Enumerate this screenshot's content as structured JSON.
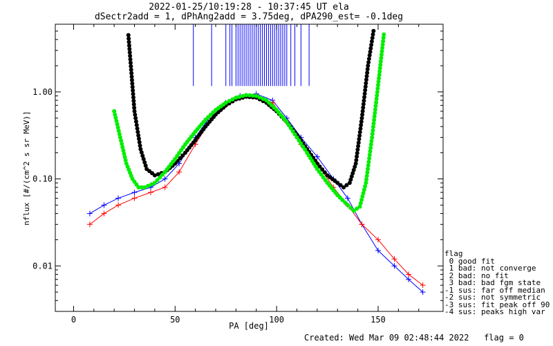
{
  "chart_data": {
    "type": "line",
    "title": "2022-01-25/10:19:28 - 10:37:45 UT ela",
    "subtitle": "dSectr2add = 1, dPhAng2add = 3.75deg, dPA290_est=  -0.1deg",
    "xlabel": "PA [deg]",
    "ylabel": "nflux [#/(cm^2 s sr MeV)]",
    "xlim": [
      -9,
      182
    ],
    "ylim": [
      0.003,
      6.0
    ],
    "log_y": true,
    "x_ticks": [
      "0",
      "50",
      "100",
      "150"
    ],
    "y_ticks": [
      "0.01",
      "0.10",
      "1.00"
    ],
    "series": [
      {
        "color": "#0000ff",
        "marker": "+",
        "x": [
          8,
          15,
          22,
          30,
          38,
          45,
          52,
          60,
          68,
          75,
          82,
          90,
          98,
          105,
          112,
          120,
          128,
          135,
          142,
          150,
          158,
          165,
          172
        ],
        "y": [
          0.04,
          0.05,
          0.06,
          0.07,
          0.08,
          0.1,
          0.15,
          0.3,
          0.55,
          0.75,
          0.9,
          0.95,
          0.8,
          0.5,
          0.3,
          0.18,
          0.1,
          0.06,
          0.03,
          0.015,
          0.01,
          0.007,
          0.005
        ]
      },
      {
        "color": "#ff0000",
        "marker": "+",
        "x": [
          8,
          15,
          22,
          30,
          38,
          45,
          52,
          60,
          68,
          75,
          82,
          90,
          98,
          105,
          112,
          120,
          128,
          135,
          142,
          150,
          158,
          165,
          172
        ],
        "y": [
          0.03,
          0.04,
          0.05,
          0.06,
          0.07,
          0.08,
          0.12,
          0.25,
          0.5,
          0.7,
          0.85,
          0.9,
          0.75,
          0.45,
          0.25,
          0.15,
          0.08,
          0.05,
          0.03,
          0.02,
          0.012,
          0.008,
          0.006
        ]
      },
      {
        "color": "#000000",
        "marker": "dot",
        "x": [
          27,
          30,
          33,
          36,
          40,
          45,
          50,
          55,
          60,
          65,
          70,
          75,
          80,
          85,
          90,
          95,
          100,
          105,
          110,
          115,
          120,
          125,
          130,
          133,
          136,
          139,
          142,
          145,
          148
        ],
        "y": [
          4.5,
          0.6,
          0.22,
          0.13,
          0.11,
          0.12,
          0.15,
          0.2,
          0.28,
          0.4,
          0.55,
          0.7,
          0.82,
          0.88,
          0.86,
          0.75,
          0.6,
          0.45,
          0.32,
          0.22,
          0.15,
          0.11,
          0.09,
          0.08,
          0.09,
          0.15,
          0.5,
          2.0,
          5.5
        ]
      },
      {
        "color": "#00ee00",
        "marker": "dot",
        "x": [
          20,
          23,
          26,
          29,
          32,
          35,
          40,
          45,
          50,
          55,
          60,
          65,
          70,
          75,
          80,
          85,
          90,
          95,
          100,
          105,
          110,
          115,
          120,
          125,
          130,
          135,
          138,
          141,
          144,
          147,
          150,
          153
        ],
        "y": [
          0.6,
          0.3,
          0.15,
          0.1,
          0.08,
          0.08,
          0.09,
          0.12,
          0.17,
          0.25,
          0.35,
          0.48,
          0.62,
          0.75,
          0.86,
          0.92,
          0.9,
          0.8,
          0.62,
          0.45,
          0.3,
          0.2,
          0.13,
          0.09,
          0.065,
          0.05,
          0.043,
          0.048,
          0.09,
          0.3,
          1.2,
          5.0
        ]
      }
    ],
    "vertical_error_bars": {
      "color": "#0000ff",
      "x": [
        59,
        68,
        75,
        77,
        78,
        80,
        81,
        82,
        83,
        84,
        85,
        86,
        87,
        88,
        89,
        90,
        91,
        92,
        93,
        94,
        95,
        96,
        97,
        98,
        99,
        100,
        101,
        102,
        103,
        104,
        105,
        107,
        109,
        112,
        116
      ],
      "y_low": 1.17,
      "y_high": 6.0
    }
  },
  "legend": {
    "title": "flag",
    "items": [
      " 0 good fit",
      " 1 bad: not converge",
      " 2 bad: no fit",
      " 3 bad: bad fgm state",
      "-1 sus: far off median",
      "-2 sus: not symmetric",
      "-3 sus: fit peak off 90",
      "-4 sus: peaks high var"
    ]
  },
  "footer": "Created: Wed Mar 09 02:48:44 2022   flag = 0"
}
